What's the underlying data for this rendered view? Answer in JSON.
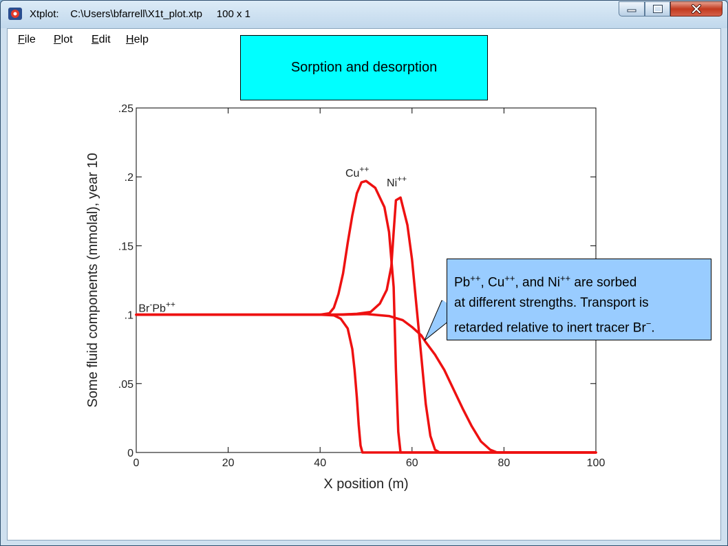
{
  "window": {
    "title": "Xtplot:    C:\\Users\\bfarrell\\X1t_plot.xtp     100 x 1",
    "minimize_icon": "minimize-icon",
    "maximize_icon": "maximize-icon",
    "close_icon": "close-icon"
  },
  "menu": {
    "items": [
      {
        "label_ul": "F",
        "label_rest": "ile"
      },
      {
        "label_ul": "P",
        "label_rest": "lot"
      },
      {
        "label_ul": "E",
        "label_rest": "dit"
      },
      {
        "label_ul": "H",
        "label_rest": "elp"
      }
    ]
  },
  "title_box": {
    "text": "Sorption and desorption",
    "bg": "#00ffff"
  },
  "callout": {
    "line1": [
      {
        "t": "Pb"
      },
      {
        "s": "++"
      },
      {
        "t": ", Cu"
      },
      {
        "s": "++"
      },
      {
        "t": ", and Ni"
      },
      {
        "s": "++"
      },
      {
        "t": " are sorbed"
      }
    ],
    "line2": [
      {
        "t": "at different strengths. Transport is"
      }
    ],
    "line3": [
      {
        "t": "retarded relative to inert tracer Br"
      },
      {
        "s": "−"
      },
      {
        "t": "."
      }
    ],
    "bg": "#99ccff"
  },
  "chart_data": {
    "type": "line",
    "xlabel": "X position (m)",
    "ylabel": "Some fluid components (mmolal), year 10",
    "xlim": [
      0,
      100
    ],
    "ylim": [
      0,
      0.25
    ],
    "xticks": [
      0,
      20,
      40,
      60,
      80,
      100
    ],
    "xtick_labels": [
      "0",
      "20",
      "40",
      "60",
      "80",
      "100"
    ],
    "yticks": [
      0,
      0.05,
      0.1,
      0.15,
      0.2,
      0.25
    ],
    "ytick_labels": [
      "0",
      ".05",
      ".1",
      ".15",
      ".2",
      ".25"
    ],
    "line_color": "#ee1111",
    "grid": false,
    "series": [
      {
        "label": "Br",
        "x": [
          0,
          40,
          42,
          43,
          44,
          45,
          46,
          47,
          48,
          49,
          50,
          52,
          54,
          55,
          56,
          56.5,
          57,
          57.5,
          100
        ],
        "y": [
          0.1,
          0.1,
          0.101,
          0.105,
          0.115,
          0.13,
          0.152,
          0.172,
          0.188,
          0.196,
          0.197,
          0.192,
          0.178,
          0.16,
          0.12,
          0.06,
          0.015,
          0,
          0
        ]
      },
      {
        "label": "Pb",
        "x": [
          0,
          40,
          43,
          44.5,
          46,
          47,
          47.5,
          48,
          48.4,
          48.8,
          49.2,
          100
        ],
        "y": [
          0.1,
          0.1,
          0.0995,
          0.097,
          0.09,
          0.075,
          0.06,
          0.04,
          0.02,
          0.005,
          0,
          0
        ]
      },
      {
        "label": "Cu",
        "x": [
          0,
          42,
          45,
          48,
          51,
          53,
          54.5,
          55.5,
          56,
          56.5,
          57.5,
          59,
          60,
          61,
          62,
          63,
          64,
          65,
          66,
          100
        ],
        "y": [
          0.1,
          0.1,
          0.1002,
          0.1006,
          0.102,
          0.108,
          0.118,
          0.135,
          0.16,
          0.183,
          0.185,
          0.165,
          0.14,
          0.105,
          0.07,
          0.035,
          0.012,
          0.002,
          0,
          0
        ]
      },
      {
        "label": "Ni",
        "x": [
          0,
          45,
          50,
          55,
          58,
          60,
          62,
          63,
          65,
          67,
          69,
          71,
          73,
          75,
          77,
          78.5,
          100
        ],
        "y": [
          0.1,
          0.1,
          0.1005,
          0.099,
          0.096,
          0.091,
          0.085,
          0.08,
          0.071,
          0.06,
          0.046,
          0.032,
          0.019,
          0.008,
          0.002,
          0,
          0
        ]
      }
    ],
    "annotations": [
      {
        "base": "Cu",
        "sup": "++",
        "x": 45.5,
        "y": 0.2
      },
      {
        "base": "Ni",
        "sup": "++",
        "x": 54.5,
        "y": 0.193
      },
      {
        "base": "Br",
        "sup": "-",
        "base2": "Pb",
        "sup2": "++",
        "x": 0.5,
        "y": 0.102
      }
    ]
  }
}
